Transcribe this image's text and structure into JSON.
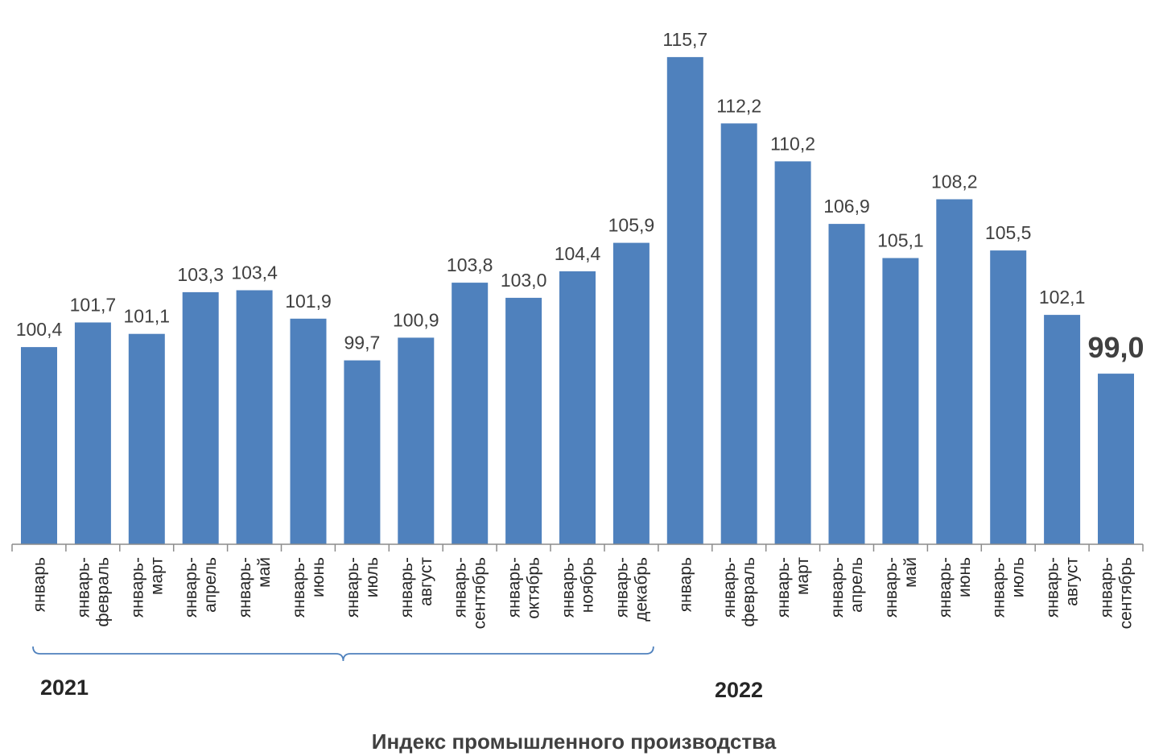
{
  "chart_data": {
    "type": "bar",
    "title": "Индекс промышленного производства",
    "xlabel": "",
    "ylabel": "",
    "grid": false,
    "legend": "none",
    "bar_color": "#4f81bd",
    "highlight_color": "#c00000",
    "highlight_index": 20,
    "categories": [
      [
        "январь"
      ],
      [
        "январь-",
        "февраль"
      ],
      [
        "январь-",
        "март"
      ],
      [
        "январь-",
        "апрель"
      ],
      [
        "январь-",
        "май"
      ],
      [
        "январь-",
        "июнь"
      ],
      [
        "январь-",
        "июль"
      ],
      [
        "январь-",
        "август"
      ],
      [
        "январь-",
        "сентябрь"
      ],
      [
        "январь-",
        "октябрь"
      ],
      [
        "январь-",
        "ноябрь"
      ],
      [
        "январь-",
        "декабрь"
      ],
      [
        "январь"
      ],
      [
        "январь-",
        "февраль"
      ],
      [
        "январь-",
        "март"
      ],
      [
        "январь-",
        "апрель"
      ],
      [
        "январь-",
        "май"
      ],
      [
        "январь-",
        "июнь"
      ],
      [
        "январь-",
        "июль"
      ],
      [
        "январь-",
        "август"
      ],
      [
        "январь-",
        "сентябрь"
      ]
    ],
    "values": [
      100.4,
      101.7,
      101.1,
      103.3,
      103.4,
      101.9,
      99.7,
      100.9,
      103.8,
      103.0,
      104.4,
      105.9,
      115.7,
      112.2,
      110.2,
      106.9,
      105.1,
      108.2,
      105.5,
      102.1,
      99.0
    ],
    "value_labels": [
      "100,4",
      "101,7",
      "101,1",
      "103,3",
      "103,4",
      "101,9",
      "99,7",
      "100,9",
      "103,8",
      "103,0",
      "104,4",
      "105,9",
      "115,7",
      "112,2",
      "110,2",
      "106,9",
      "105,1",
      "108,2",
      "105,5",
      "102,1",
      "99,0"
    ],
    "ylim": [
      90,
      116.8
    ],
    "groups": [
      {
        "label": "2021",
        "start": 0,
        "end": 11
      },
      {
        "label": "2022",
        "start": 12,
        "end": 20
      }
    ]
  }
}
